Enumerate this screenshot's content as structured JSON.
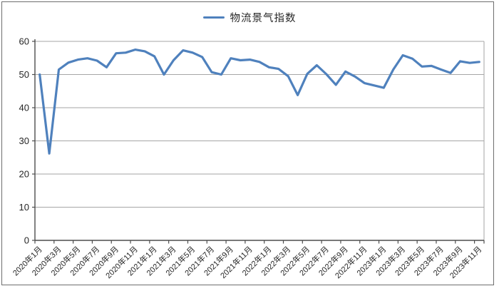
{
  "legend": {
    "label": "物流景气指数"
  },
  "colors": {
    "line": "#4F81BD",
    "grid": "#A6A6A6",
    "axis": "#4D4D4D",
    "text": "#262626",
    "frame_border": "#6E6E6E"
  },
  "chart_data": {
    "type": "line",
    "title": "",
    "legend_entries": [
      "物流景气指数"
    ],
    "legend_position": "top-center",
    "grid": "horizontal",
    "ylim": [
      0,
      60
    ],
    "y_ticks": [
      0,
      10,
      20,
      30,
      40,
      50,
      60
    ],
    "x_tick_labels": [
      "2020年1月",
      "2020年3月",
      "2020年5月",
      "2020年7月",
      "2020年9月",
      "2020年11月",
      "2021年1月",
      "2021年3月",
      "2021年5月",
      "2021年7月",
      "2021年9月",
      "2021年11月",
      "2022年1月",
      "2022年3月",
      "2022年5月",
      "2022年7月",
      "2022年9月",
      "2022年11月",
      "2023年1月",
      "2023年3月",
      "2023年5月",
      "2023年7月",
      "2023年9月",
      "2023年11月"
    ],
    "x_frequency": "monthly",
    "x_start": "2020年1月",
    "x_end": "2023年11月",
    "x_months": [
      "2020年1月",
      "2020年2月",
      "2020年3月",
      "2020年4月",
      "2020年5月",
      "2020年6月",
      "2020年7月",
      "2020年8月",
      "2020年9月",
      "2020年10月",
      "2020年11月",
      "2020年12月",
      "2021年1月",
      "2021年2月",
      "2021年3月",
      "2021年4月",
      "2021年5月",
      "2021年6月",
      "2021年7月",
      "2021年8月",
      "2021年9月",
      "2021年10月",
      "2021年11月",
      "2021年12月",
      "2022年1月",
      "2022年2月",
      "2022年3月",
      "2022年4月",
      "2022年5月",
      "2022年6月",
      "2022年7月",
      "2022年8月",
      "2022年9月",
      "2022年10月",
      "2022年11月",
      "2022年12月",
      "2023年1月",
      "2023年2月",
      "2023年3月",
      "2023年4月",
      "2023年5月",
      "2023年6月",
      "2023年7月",
      "2023年8月",
      "2023年9月",
      "2023年10月",
      "2023年11月"
    ],
    "series": [
      {
        "name": "物流景气指数",
        "color": "#4F81BD",
        "values": [
          50.0,
          26.2,
          51.5,
          53.6,
          54.5,
          54.9,
          54.2,
          52.2,
          56.4,
          56.6,
          57.5,
          57.0,
          55.5,
          50.0,
          54.3,
          57.3,
          56.6,
          55.3,
          50.7,
          50.0,
          54.9,
          54.3,
          54.5,
          53.8,
          52.2,
          51.7,
          49.5,
          43.8,
          50.2,
          52.8,
          50.1,
          46.9,
          50.9,
          49.4,
          47.4,
          46.7,
          46.0,
          51.5,
          55.8,
          54.8,
          52.4,
          52.6,
          51.5,
          50.5,
          54.0,
          53.5,
          53.8
        ]
      }
    ]
  }
}
